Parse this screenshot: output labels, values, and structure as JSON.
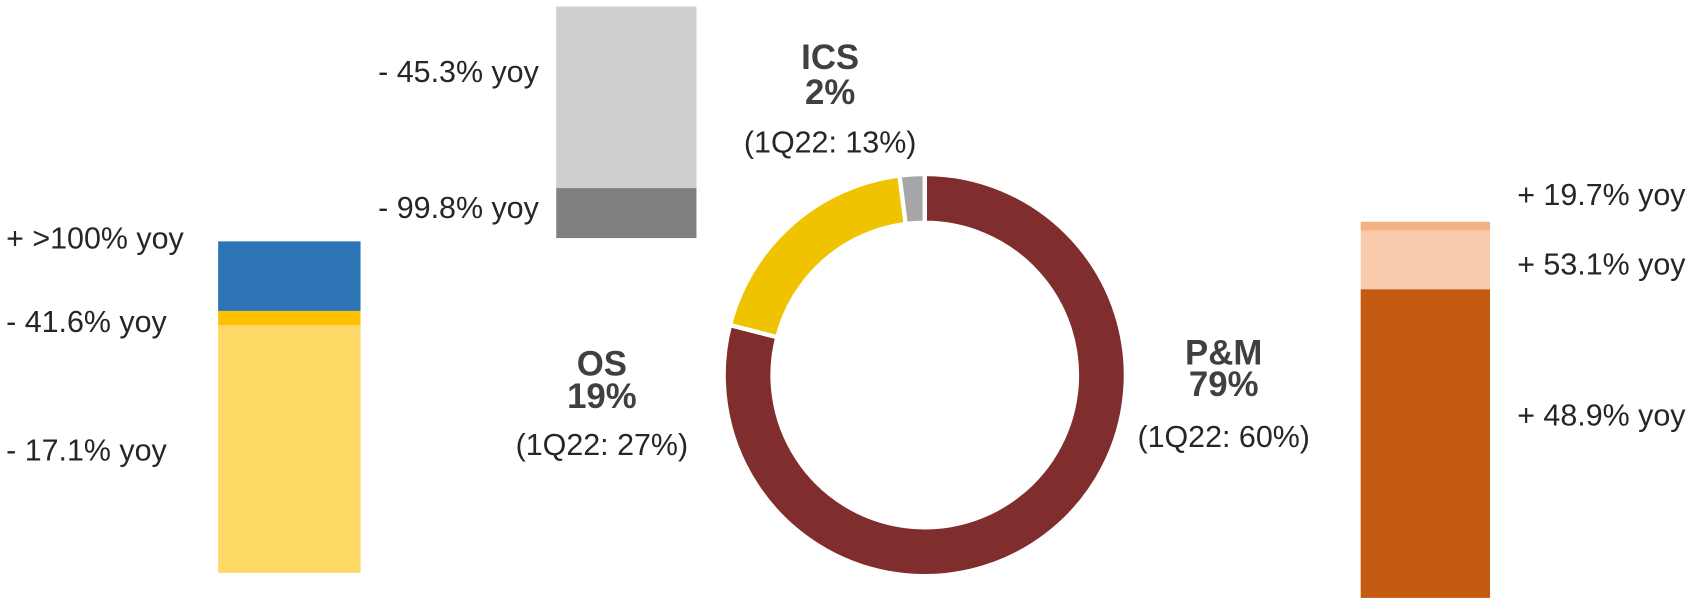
{
  "chart_data": [
    {
      "type": "pie",
      "categories": [
        "P&M",
        "OS",
        "ICS"
      ],
      "values": [
        79,
        19,
        2
      ],
      "value_labels": [
        "79%",
        "19%",
        "2%"
      ],
      "annotations": [
        "(1Q22: 60%)",
        "(1Q22: 27%)",
        "(1Q22: 13%)"
      ],
      "colors": [
        "#7f2d2d",
        "#f0c300",
        "#a6a6a6"
      ],
      "donut": true
    },
    {
      "type": "stacked_bar",
      "series": [
        {
          "name": "- 17.1% yoy",
          "color": "#ffd966",
          "values": [
            228
          ]
        },
        {
          "name": "- 41.6% yoy",
          "color": "#ffc000",
          "values": [
            13
          ]
        },
        {
          "name": "+ >100% yoy",
          "color": "#2e75b6",
          "values": [
            64
          ]
        }
      ]
    },
    {
      "type": "stacked_bar",
      "series": [
        {
          "name": "- 99.8% yoy",
          "color": "#808080",
          "values": [
            46
          ]
        },
        {
          "name": "- 45.3% yoy",
          "color": "#d0cece",
          "values": [
            167
          ]
        }
      ]
    },
    {
      "type": "stacked_bar",
      "series": [
        {
          "name": "+ 48.9% yoy",
          "color": "#c55a11",
          "values": [
            284
          ]
        },
        {
          "name": "+ 53.1% yoy",
          "color": "#f8cbad",
          "values": [
            54
          ]
        },
        {
          "name": "+ 19.7% yoy",
          "color": "#f4b183",
          "values": [
            8
          ]
        }
      ]
    }
  ]
}
